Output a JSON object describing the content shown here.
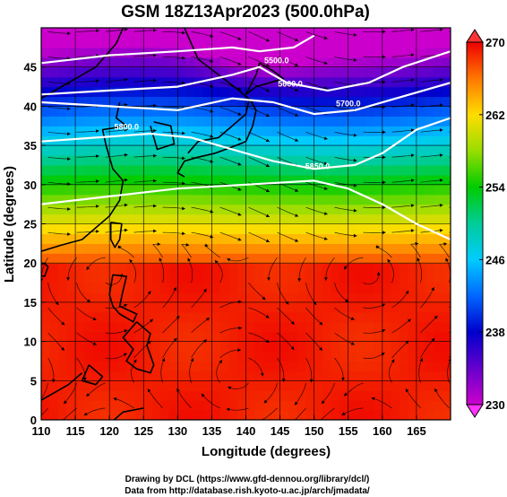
{
  "chart_data": {
    "type": "heatmap",
    "title": "GSM 18Z13Apr2023 (500.0hPa)",
    "xlabel": "Longitude (degrees)",
    "ylabel": "Latitude  (degrees)",
    "xlim": [
      110,
      170
    ],
    "ylim": [
      0,
      50
    ],
    "xticks": [
      110,
      115,
      120,
      125,
      130,
      135,
      140,
      145,
      150,
      155,
      160,
      165
    ],
    "yticks": [
      0,
      5,
      10,
      15,
      20,
      25,
      30,
      35,
      40,
      45
    ],
    "grid": true,
    "colorbar": {
      "placement": "right",
      "range": [
        230,
        270
      ],
      "ticks": [
        230,
        238,
        246,
        254,
        262,
        270
      ]
    },
    "overlays": [
      "streamlines",
      "coastlines",
      "contours"
    ],
    "contour_labels": [
      {
        "text": "5500.0",
        "lon": 144.5,
        "lat": 45.5
      },
      {
        "text": "5600.0",
        "lon": 146.5,
        "lat": 42.5
      },
      {
        "text": "5700.0",
        "lon": 155.0,
        "lat": 40.0
      },
      {
        "text": "5800.0",
        "lon": 122.5,
        "lat": 37.0
      },
      {
        "text": "5850.0",
        "lon": 150.5,
        "lat": 32.0
      }
    ],
    "contour_lines": [
      [
        [
          110,
          45.5
        ],
        [
          120,
          46.5
        ],
        [
          130,
          47.0
        ],
        [
          138,
          47.5
        ],
        [
          142,
          47.0
        ],
        [
          147,
          47.5
        ],
        [
          150,
          49.0
        ]
      ],
      [
        [
          110,
          41.5
        ],
        [
          120,
          42.0
        ],
        [
          130,
          42.5
        ],
        [
          138,
          44.0
        ],
        [
          142,
          45.0
        ],
        [
          146,
          43.0
        ],
        [
          152,
          42.0
        ],
        [
          158,
          43.0
        ],
        [
          163,
          45.0
        ],
        [
          170,
          47.0
        ]
      ],
      [
        [
          110,
          40.5
        ],
        [
          120,
          40.0
        ],
        [
          130,
          39.5
        ],
        [
          138,
          41.0
        ],
        [
          144,
          40.5
        ],
        [
          150,
          39.0
        ],
        [
          156,
          39.5
        ],
        [
          162,
          41.0
        ],
        [
          170,
          43.0
        ]
      ],
      [
        [
          110,
          35.5
        ],
        [
          118,
          36.0
        ],
        [
          126,
          36.5
        ],
        [
          132,
          36.0
        ],
        [
          138,
          34.5
        ],
        [
          144,
          33.0
        ],
        [
          150,
          32.0
        ],
        [
          156,
          32.5
        ],
        [
          160,
          34.0
        ],
        [
          165,
          37.0
        ],
        [
          170,
          38.5
        ]
      ],
      [
        [
          110,
          27.5
        ],
        [
          120,
          28.5
        ],
        [
          130,
          29.5
        ],
        [
          140,
          30.0
        ],
        [
          150,
          30.5
        ],
        [
          155,
          29.5
        ],
        [
          160,
          27.5
        ],
        [
          165,
          25.0
        ],
        [
          170,
          23.0
        ]
      ]
    ],
    "coastlines": [
      [
        [
          110,
          41.0
        ],
        [
          114,
          43.0
        ],
        [
          118,
          45.0
        ],
        [
          121,
          48.0
        ],
        [
          122,
          50.0
        ]
      ],
      [
        [
          131,
          50.0
        ],
        [
          133,
          46.0
        ],
        [
          136,
          44.0
        ],
        [
          139,
          42.0
        ],
        [
          141,
          40.5
        ]
      ],
      [
        [
          140.5,
          41.0
        ],
        [
          141.5,
          39.5
        ],
        [
          141,
          37.5
        ],
        [
          140,
          35.5
        ],
        [
          138,
          34.8
        ],
        [
          135.5,
          34.0
        ],
        [
          133,
          33.5
        ],
        [
          131,
          33.0
        ],
        [
          130,
          31.5
        ],
        [
          131,
          31.0
        ]
      ],
      [
        [
          131.5,
          34.0
        ],
        [
          133,
          35.5
        ],
        [
          136,
          36.0
        ],
        [
          138,
          37.5
        ],
        [
          140,
          39.0
        ],
        [
          140.5,
          41.0
        ]
      ],
      [
        [
          140.0,
          41.5
        ],
        [
          141.5,
          42.5
        ],
        [
          143.5,
          43.0
        ],
        [
          145.5,
          43.5
        ],
        [
          144,
          44.5
        ],
        [
          142,
          45.5
        ],
        [
          141.5,
          44.0
        ],
        [
          140,
          41.5
        ]
      ],
      [
        [
          126.5,
          38.0
        ],
        [
          129,
          37.5
        ],
        [
          129.5,
          35.2
        ],
        [
          127,
          34.5
        ],
        [
          126.5,
          36.0
        ],
        [
          126,
          37.5
        ]
      ],
      [
        [
          121.5,
          40.5
        ],
        [
          121,
          38.5
        ],
        [
          122.5,
          37.5
        ],
        [
          119,
          37.0
        ],
        [
          119.5,
          35.0
        ],
        [
          120.5,
          32.0
        ],
        [
          122,
          30.5
        ],
        [
          121.5,
          28.0
        ],
        [
          120,
          26.0
        ],
        [
          118,
          24.5
        ],
        [
          116,
          23.0
        ],
        [
          113,
          22.3
        ],
        [
          110,
          21.5
        ]
      ],
      [
        [
          120.2,
          25.2
        ],
        [
          121.8,
          25.0
        ],
        [
          121.5,
          23.0
        ],
        [
          120.8,
          22.0
        ],
        [
          120.2,
          23.0
        ],
        [
          120.2,
          25.2
        ]
      ],
      [
        [
          110.5,
          20.0
        ],
        [
          111.0,
          19.5
        ],
        [
          110.5,
          18.3
        ],
        [
          109,
          18.5
        ],
        [
          108.8,
          19.5
        ],
        [
          110.5,
          20.0
        ]
      ],
      [
        [
          120.5,
          18.5
        ],
        [
          122.5,
          18.3
        ],
        [
          122,
          16.5
        ],
        [
          121.5,
          14.5
        ],
        [
          124.0,
          13.5
        ],
        [
          123.5,
          12.5
        ],
        [
          121.5,
          13.5
        ],
        [
          120.5,
          14.5
        ],
        [
          120,
          16.0
        ],
        [
          120.5,
          18.5
        ]
      ],
      [
        [
          124,
          12.5
        ],
        [
          126,
          11.0
        ],
        [
          125.5,
          9.5
        ],
        [
          126.5,
          7.0
        ],
        [
          126,
          6.0
        ],
        [
          124,
          6.5
        ],
        [
          122.5,
          7.5
        ],
        [
          123.5,
          9.0
        ],
        [
          122,
          10.5
        ],
        [
          124,
          12.5
        ]
      ],
      [
        [
          117,
          7.0
        ],
        [
          116,
          5.0
        ],
        [
          118,
          4.5
        ],
        [
          119,
          5.5
        ],
        [
          117,
          7.0
        ]
      ],
      [
        [
          110,
          2.5
        ],
        [
          112,
          3.5
        ],
        [
          114,
          4.5
        ],
        [
          116,
          6.0
        ]
      ],
      [
        [
          120,
          -0.5
        ],
        [
          122,
          1.0
        ],
        [
          125,
          1.5
        ]
      ],
      [
        [
          130,
          -0.5
        ],
        [
          133,
          -0.2
        ],
        [
          136,
          -1.0
        ]
      ]
    ]
  }
}
